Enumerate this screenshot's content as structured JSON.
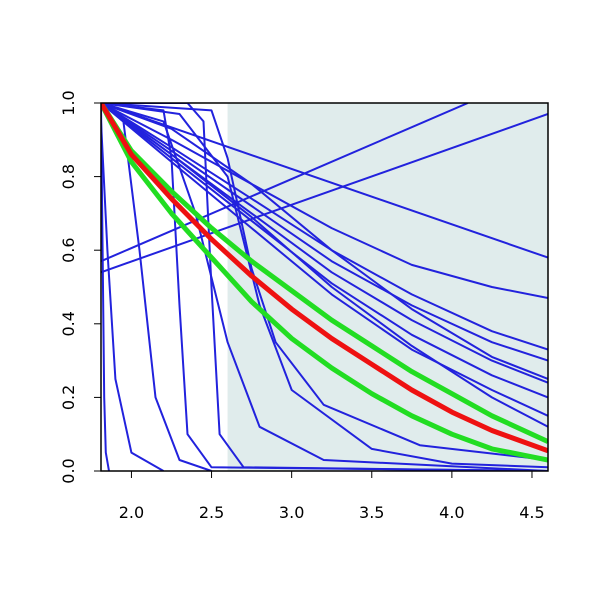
{
  "chart_data": {
    "type": "line",
    "xlim": [
      1.81,
      4.6
    ],
    "ylim": [
      0,
      1
    ],
    "xticks": [
      {
        "value": 2,
        "label": "2.0"
      },
      2.5,
      {
        "value": 3,
        "label": "3.0"
      },
      3.5,
      {
        "value": 4,
        "label": "4.0"
      },
      4.5
    ],
    "yticks": [
      {
        "value": 0,
        "label": "0.0"
      },
      0.2,
      0.4,
      0.6,
      0.8,
      {
        "value": 1,
        "label": "1.0"
      }
    ],
    "shaded_region": {
      "x0": 2.6,
      "x1": 4.6,
      "color": "#e0ecec"
    },
    "series": [
      {
        "color": "#2222dd",
        "width": 2,
        "x": [
          1.81,
          4.6
        ],
        "values": [
          0.54,
          0.97
        ]
      },
      {
        "color": "#2222dd",
        "width": 2,
        "x": [
          1.81,
          4.1
        ],
        "values": [
          0.57,
          1.0
        ]
      },
      {
        "color": "#2222dd",
        "width": 2,
        "x": [
          1.81,
          4.6
        ],
        "values": [
          1.0,
          0.58
        ]
      },
      {
        "color": "#2222dd",
        "width": 2,
        "x": [
          1.81,
          2.25,
          2.75,
          3.25,
          3.75,
          4.25,
          4.6
        ],
        "values": [
          1.0,
          0.9,
          0.78,
          0.66,
          0.56,
          0.5,
          0.47
        ]
      },
      {
        "color": "#2222dd",
        "width": 2,
        "x": [
          1.81,
          2.25,
          2.75,
          3.25,
          3.75,
          4.25,
          4.6
        ],
        "values": [
          1.0,
          0.88,
          0.74,
          0.6,
          0.48,
          0.38,
          0.33
        ]
      },
      {
        "color": "#2222dd",
        "width": 2,
        "x": [
          1.81,
          2.25,
          2.75,
          3.25,
          3.75,
          4.25,
          4.6
        ],
        "values": [
          1.0,
          0.87,
          0.72,
          0.57,
          0.45,
          0.35,
          0.3
        ]
      },
      {
        "color": "#2222dd",
        "width": 2,
        "x": [
          1.81,
          2.25,
          2.75,
          3.25,
          3.75,
          4.25,
          4.6
        ],
        "values": [
          1.0,
          0.86,
          0.7,
          0.54,
          0.41,
          0.3,
          0.24
        ]
      },
      {
        "color": "#2222dd",
        "width": 2,
        "x": [
          1.81,
          2.25,
          2.75,
          3.25,
          3.75,
          4.25,
          4.6
        ],
        "values": [
          1.0,
          0.85,
          0.68,
          0.51,
          0.37,
          0.26,
          0.2
        ]
      },
      {
        "color": "#2222dd",
        "width": 2,
        "x": [
          1.81,
          2.25,
          2.75,
          3.25,
          3.75,
          4.25,
          4.6
        ],
        "values": [
          1.0,
          0.84,
          0.66,
          0.48,
          0.33,
          0.22,
          0.15
        ]
      },
      {
        "color": "#2222dd",
        "width": 2,
        "x": [
          1.81,
          2.25,
          2.75,
          3.25,
          3.75,
          4.25,
          4.6
        ],
        "values": [
          1.0,
          0.86,
          0.69,
          0.5,
          0.34,
          0.2,
          0.12
        ]
      },
      {
        "color": "#2222dd",
        "width": 2,
        "x": [
          1.81,
          2.25,
          2.75,
          3.25,
          3.75,
          4.25,
          4.6
        ],
        "values": [
          1.0,
          0.93,
          0.78,
          0.6,
          0.44,
          0.31,
          0.25
        ]
      },
      {
        "color": "#2222dd",
        "width": 2,
        "x": [
          1.81,
          2.3,
          2.6,
          2.8,
          3.0,
          3.5,
          4.0,
          4.6
        ],
        "values": [
          1.0,
          0.97,
          0.8,
          0.45,
          0.22,
          0.06,
          0.02,
          0.01
        ]
      },
      {
        "color": "#2222dd",
        "width": 2,
        "x": [
          1.81,
          2.2,
          2.4,
          2.6,
          2.8,
          3.2,
          4.6
        ],
        "values": [
          1.0,
          0.95,
          0.7,
          0.35,
          0.12,
          0.03,
          0.0
        ]
      },
      {
        "color": "#2222dd",
        "width": 2,
        "x": [
          1.81,
          2.35,
          2.45,
          2.5,
          2.55,
          2.7,
          4.6
        ],
        "values": [
          1.0,
          1.0,
          0.95,
          0.5,
          0.1,
          0.01,
          0.0
        ]
      },
      {
        "color": "#2222dd",
        "width": 2,
        "x": [
          1.81,
          2.2,
          2.25,
          2.3,
          2.35,
          2.5,
          4.6
        ],
        "values": [
          1.0,
          0.98,
          0.85,
          0.45,
          0.1,
          0.01,
          0.0
        ]
      },
      {
        "color": "#2222dd",
        "width": 2,
        "x": [
          1.81,
          1.95,
          2.05,
          2.15,
          2.3,
          2.5
        ],
        "values": [
          1.0,
          0.95,
          0.6,
          0.2,
          0.03,
          0.0
        ]
      },
      {
        "color": "#2222dd",
        "width": 2,
        "x": [
          1.81,
          1.85,
          1.9,
          2.0,
          2.2
        ],
        "values": [
          0.95,
          0.6,
          0.25,
          0.05,
          0.0
        ]
      },
      {
        "color": "#2222dd",
        "width": 2,
        "x": [
          1.81,
          1.82,
          1.83,
          1.84,
          1.86
        ],
        "values": [
          1.0,
          0.6,
          0.2,
          0.05,
          0.0
        ]
      },
      {
        "color": "#2222dd",
        "width": 2,
        "x": [
          1.81,
          2.5,
          2.6,
          2.75,
          2.9,
          3.2,
          3.8,
          4.6
        ],
        "values": [
          1.0,
          0.98,
          0.85,
          0.55,
          0.35,
          0.18,
          0.07,
          0.03
        ]
      },
      {
        "color": "#22dd22",
        "width": 5,
        "x": [
          1.81,
          2.0,
          2.25,
          2.5,
          2.75,
          3.0,
          3.25,
          3.5,
          3.75,
          4.0,
          4.25,
          4.6
        ],
        "values": [
          1.0,
          0.87,
          0.76,
          0.66,
          0.57,
          0.49,
          0.41,
          0.34,
          0.27,
          0.21,
          0.15,
          0.08
        ]
      },
      {
        "color": "#22dd22",
        "width": 5,
        "x": [
          1.81,
          2.0,
          2.25,
          2.5,
          2.75,
          3.0,
          3.25,
          3.5,
          3.75,
          4.0,
          4.25,
          4.6
        ],
        "values": [
          1.0,
          0.84,
          0.7,
          0.58,
          0.46,
          0.36,
          0.28,
          0.21,
          0.15,
          0.1,
          0.06,
          0.03
        ]
      },
      {
        "color": "#ee1111",
        "width": 5,
        "x": [
          1.81,
          2.0,
          2.25,
          2.5,
          2.75,
          3.0,
          3.25,
          3.5,
          3.75,
          4.0,
          4.25,
          4.6
        ],
        "values": [
          1.0,
          0.86,
          0.74,
          0.63,
          0.53,
          0.44,
          0.36,
          0.29,
          0.22,
          0.16,
          0.11,
          0.055
        ]
      }
    ]
  }
}
